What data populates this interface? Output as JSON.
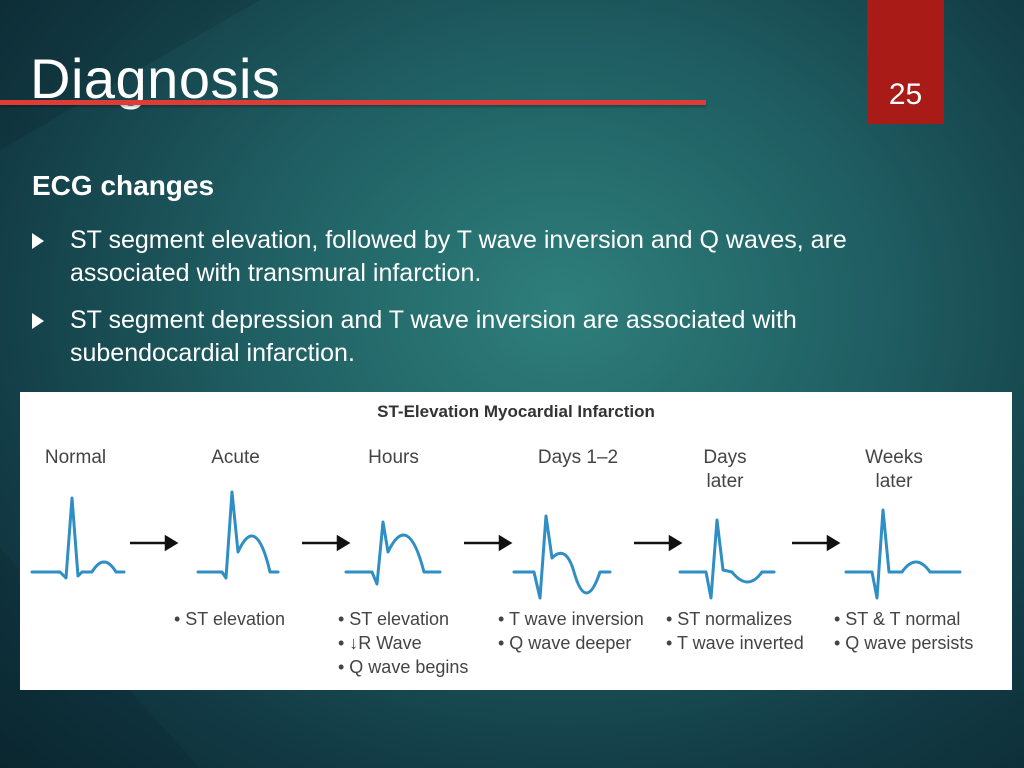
{
  "slide": {
    "title": "Diagnosis",
    "number": "25",
    "subheading": "ECG changes",
    "bullets": [
      "ST segment elevation, followed by T wave inversion and Q waves, are associated with transmural infarction.",
      "ST segment depression and T wave inversion are associated with subendocardial infarction."
    ]
  },
  "figure": {
    "title": "ST-Elevation Myocardial Infarction",
    "stages": [
      {
        "label": "Normal",
        "notes": []
      },
      {
        "label": "Acute",
        "notes": [
          "• ST elevation"
        ]
      },
      {
        "label": "Hours",
        "notes": [
          "• ST elevation",
          "• ↓R Wave",
          "• Q wave begins"
        ]
      },
      {
        "label": "Days 1–2",
        "notes": [
          "• T wave inversion",
          "• Q wave deeper"
        ]
      },
      {
        "label": "Days\nlater",
        "notes": [
          "• ST normalizes",
          "• T wave inverted"
        ]
      },
      {
        "label": "Weeks\nlater",
        "notes": [
          "• ST & T normal",
          "• Q wave persists"
        ]
      }
    ]
  },
  "colors": {
    "accent_red": "#e03b36",
    "slide_number_bg": "#a81b17",
    "ecg_trace": "#2f8ec3"
  }
}
